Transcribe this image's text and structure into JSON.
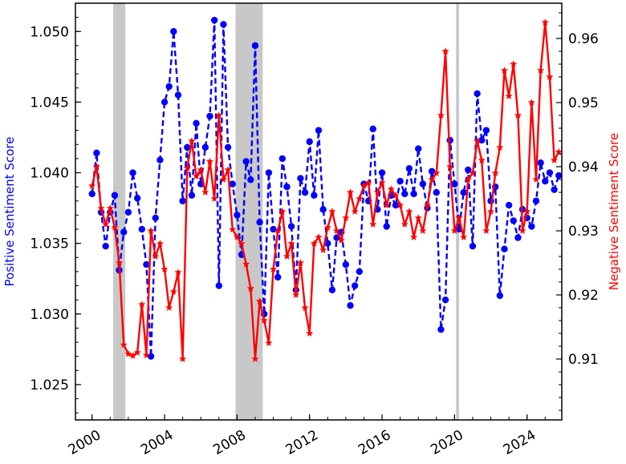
{
  "chart_data": {
    "type": "line",
    "ylabel_left": "Positive Sentiment Score",
    "ylabel_right": "Negative Sentiment Score",
    "ylim_left": [
      1.0225,
      1.052
    ],
    "ylim_right": [
      0.9005,
      0.9655
    ],
    "xlim": [
      "1999-02",
      "2025-12"
    ],
    "x_ticks": [
      "2000",
      "2004",
      "2008",
      "2012",
      "2016",
      "2020",
      "2024"
    ],
    "y_ticks_left": [
      "1.025",
      "1.030",
      "1.035",
      "1.040",
      "1.045",
      "1.050"
    ],
    "y_ticks_right": [
      "0.91",
      "0.92",
      "0.93",
      "0.94",
      "0.95",
      "0.96"
    ],
    "grid": false,
    "recession_shading": [
      {
        "start": "2001-03",
        "end": "2001-11"
      },
      {
        "start": "2007-12",
        "end": "2009-06"
      },
      {
        "start": "2020-02",
        "end": "2020-04"
      }
    ],
    "series": [
      {
        "axis": "left",
        "color": "#0000ff",
        "style": "dashed",
        "marker": "circle",
        "points": [
          [
            "2000-01",
            1.0385
          ],
          [
            "2000-04",
            1.0414
          ],
          [
            "2000-07",
            1.0372
          ],
          [
            "2000-10",
            1.0348
          ],
          [
            "2001-01",
            1.0372
          ],
          [
            "2001-04",
            1.0384
          ],
          [
            "2001-07",
            1.0331
          ],
          [
            "2001-10",
            1.0358
          ],
          [
            "2002-01",
            1.0372
          ],
          [
            "2002-04",
            1.04
          ],
          [
            "2002-07",
            1.0382
          ],
          [
            "2002-10",
            1.036
          ],
          [
            "2003-01",
            1.0335
          ],
          [
            "2003-04",
            1.027
          ],
          [
            "2003-07",
            1.0368
          ],
          [
            "2003-10",
            1.0409
          ],
          [
            "2004-01",
            1.045
          ],
          [
            "2004-04",
            1.0461
          ],
          [
            "2004-07",
            1.05
          ],
          [
            "2004-10",
            1.0455
          ],
          [
            "2005-01",
            1.038
          ],
          [
            "2005-04",
            1.0418
          ],
          [
            "2005-07",
            1.0384
          ],
          [
            "2005-10",
            1.0435
          ],
          [
            "2006-01",
            1.0392
          ],
          [
            "2006-04",
            1.0418
          ],
          [
            "2006-07",
            1.044
          ],
          [
            "2006-10",
            1.0508
          ],
          [
            "2007-01",
            1.032
          ],
          [
            "2007-04",
            1.0505
          ],
          [
            "2007-07",
            1.0418
          ],
          [
            "2007-10",
            1.0392
          ],
          [
            "2008-01",
            1.037
          ],
          [
            "2008-04",
            1.0342
          ],
          [
            "2008-07",
            1.0408
          ],
          [
            "2008-10",
            1.0395
          ],
          [
            "2009-01",
            1.049
          ],
          [
            "2009-04",
            1.0365
          ],
          [
            "2009-07",
            1.03
          ],
          [
            "2009-10",
            1.04
          ],
          [
            "2010-01",
            1.036
          ],
          [
            "2010-04",
            1.0326
          ],
          [
            "2010-07",
            1.041
          ],
          [
            "2010-10",
            1.039
          ],
          [
            "2011-01",
            1.0362
          ],
          [
            "2011-04",
            1.0317
          ],
          [
            "2011-07",
            1.0396
          ],
          [
            "2011-10",
            1.0386
          ],
          [
            "2012-01",
            1.0422
          ],
          [
            "2012-04",
            1.0384
          ],
          [
            "2012-07",
            1.043
          ],
          [
            "2012-10",
            1.0374
          ],
          [
            "2013-01",
            1.035
          ],
          [
            "2013-04",
            1.0317
          ],
          [
            "2013-07",
            1.0354
          ],
          [
            "2013-10",
            1.0358
          ],
          [
            "2014-01",
            1.0335
          ],
          [
            "2014-04",
            1.0306
          ],
          [
            "2014-07",
            1.032
          ],
          [
            "2014-10",
            1.033
          ],
          [
            "2015-01",
            1.0392
          ],
          [
            "2015-04",
            1.038
          ],
          [
            "2015-07",
            1.0431
          ],
          [
            "2015-10",
            1.0374
          ],
          [
            "2016-01",
            1.04
          ],
          [
            "2016-04",
            1.0362
          ],
          [
            "2016-07",
            1.0384
          ],
          [
            "2016-10",
            1.0377
          ],
          [
            "2017-01",
            1.0394
          ],
          [
            "2017-04",
            1.0385
          ],
          [
            "2017-07",
            1.0403
          ],
          [
            "2017-10",
            1.0385
          ],
          [
            "2018-01",
            1.0417
          ],
          [
            "2018-04",
            1.0392
          ],
          [
            "2018-07",
            1.0375
          ],
          [
            "2018-10",
            1.0401
          ],
          [
            "2019-01",
            1.0386
          ],
          [
            "2019-04",
            1.0289
          ],
          [
            "2019-07",
            1.031
          ],
          [
            "2019-10",
            1.0423
          ],
          [
            "2020-01",
            1.0392
          ],
          [
            "2020-04",
            1.036
          ],
          [
            "2020-07",
            1.0386
          ],
          [
            "2020-10",
            1.0402
          ],
          [
            "2021-01",
            1.0348
          ],
          [
            "2021-04",
            1.0456
          ],
          [
            "2021-07",
            1.0423
          ],
          [
            "2021-10",
            1.043
          ],
          [
            "2022-01",
            1.038
          ],
          [
            "2022-04",
            1.039
          ],
          [
            "2022-07",
            1.0313
          ],
          [
            "2022-10",
            1.0346
          ],
          [
            "2023-01",
            1.0377
          ],
          [
            "2023-04",
            1.0366
          ],
          [
            "2023-07",
            1.0354
          ],
          [
            "2023-10",
            1.0374
          ],
          [
            "2024-01",
            1.0368
          ],
          [
            "2024-04",
            1.0362
          ],
          [
            "2024-07",
            1.038
          ],
          [
            "2024-10",
            1.0407
          ],
          [
            "2025-01",
            1.0394
          ],
          [
            "2025-04",
            1.04
          ],
          [
            "2025-07",
            1.0388
          ],
          [
            "2025-10",
            1.0398
          ]
        ]
      },
      {
        "axis": "right",
        "color": "#ff0000",
        "style": "solid",
        "marker": "star",
        "points": [
          [
            "2000-01",
            0.937
          ],
          [
            "2000-04",
            0.94
          ],
          [
            "2000-07",
            0.9335
          ],
          [
            "2000-10",
            0.931
          ],
          [
            "2001-01",
            0.9335
          ],
          [
            "2001-04",
            0.9305
          ],
          [
            "2001-07",
            0.925
          ],
          [
            "2001-10",
            0.9122
          ],
          [
            "2002-01",
            0.9108
          ],
          [
            "2002-04",
            0.9105
          ],
          [
            "2002-07",
            0.911
          ],
          [
            "2002-10",
            0.9185
          ],
          [
            "2003-01",
            0.9106
          ],
          [
            "2003-04",
            0.93
          ],
          [
            "2003-07",
            0.926
          ],
          [
            "2003-10",
            0.928
          ],
          [
            "2004-01",
            0.924
          ],
          [
            "2004-04",
            0.918
          ],
          [
            "2004-07",
            0.9205
          ],
          [
            "2004-10",
            0.9235
          ],
          [
            "2005-01",
            0.91
          ],
          [
            "2005-04",
            0.9398
          ],
          [
            "2005-07",
            0.944
          ],
          [
            "2005-10",
            0.9385
          ],
          [
            "2006-01",
            0.9395
          ],
          [
            "2006-04",
            0.936
          ],
          [
            "2006-07",
            0.9408
          ],
          [
            "2006-10",
            0.935
          ],
          [
            "2007-01",
            0.948
          ],
          [
            "2007-04",
            0.938
          ],
          [
            "2007-07",
            0.9395
          ],
          [
            "2007-10",
            0.9302
          ],
          [
            "2008-01",
            0.929
          ],
          [
            "2008-04",
            0.928
          ],
          [
            "2008-07",
            0.9248
          ],
          [
            "2008-10",
            0.921
          ],
          [
            "2009-01",
            0.91
          ],
          [
            "2009-04",
            0.919
          ],
          [
            "2009-07",
            0.916
          ],
          [
            "2009-10",
            0.9125
          ],
          [
            "2010-01",
            0.924
          ],
          [
            "2010-04",
            0.93
          ],
          [
            "2010-07",
            0.933
          ],
          [
            "2010-10",
            0.926
          ],
          [
            "2011-01",
            0.928
          ],
          [
            "2011-04",
            0.92
          ],
          [
            "2011-07",
            0.925
          ],
          [
            "2011-10",
            0.918
          ],
          [
            "2012-01",
            0.914
          ],
          [
            "2012-04",
            0.928
          ],
          [
            "2012-07",
            0.929
          ],
          [
            "2012-10",
            0.927
          ],
          [
            "2013-01",
            0.9305
          ],
          [
            "2013-04",
            0.933
          ],
          [
            "2013-07",
            0.93
          ],
          [
            "2013-10",
            0.9285
          ],
          [
            "2014-01",
            0.932
          ],
          [
            "2014-04",
            0.936
          ],
          [
            "2014-07",
            0.933
          ],
          [
            "2014-10",
            0.935
          ],
          [
            "2015-01",
            0.937
          ],
          [
            "2015-04",
            0.9375
          ],
          [
            "2015-07",
            0.931
          ],
          [
            "2015-10",
            0.936
          ],
          [
            "2016-01",
            0.9375
          ],
          [
            "2016-04",
            0.934
          ],
          [
            "2016-07",
            0.9365
          ],
          [
            "2016-10",
            0.9355
          ],
          [
            "2017-01",
            0.934
          ],
          [
            "2017-04",
            0.931
          ],
          [
            "2017-07",
            0.933
          ],
          [
            "2017-10",
            0.929
          ],
          [
            "2018-01",
            0.932
          ],
          [
            "2018-04",
            0.93
          ],
          [
            "2018-07",
            0.934
          ],
          [
            "2018-10",
            0.938
          ],
          [
            "2019-01",
            0.939
          ],
          [
            "2019-04",
            0.948
          ],
          [
            "2019-07",
            0.958
          ],
          [
            "2019-10",
            0.94
          ],
          [
            "2020-01",
            0.93
          ],
          [
            "2020-04",
            0.932
          ],
          [
            "2020-07",
            0.929
          ],
          [
            "2020-10",
            0.938
          ],
          [
            "2021-01",
            0.939
          ],
          [
            "2021-04",
            0.944
          ],
          [
            "2021-07",
            0.941
          ],
          [
            "2021-10",
            0.93
          ],
          [
            "2022-01",
            0.933
          ],
          [
            "2022-04",
            0.939
          ],
          [
            "2022-07",
            0.943
          ],
          [
            "2022-10",
            0.955
          ],
          [
            "2023-01",
            0.951
          ],
          [
            "2023-04",
            0.956
          ],
          [
            "2023-07",
            0.948
          ],
          [
            "2023-10",
            0.93
          ],
          [
            "2024-01",
            0.933
          ],
          [
            "2024-04",
            0.95
          ],
          [
            "2024-07",
            0.938
          ],
          [
            "2024-10",
            0.955
          ],
          [
            "2025-01",
            0.9625
          ],
          [
            "2025-04",
            0.954
          ],
          [
            "2025-07",
            0.941
          ],
          [
            "2025-10",
            0.9423
          ]
        ]
      }
    ]
  }
}
